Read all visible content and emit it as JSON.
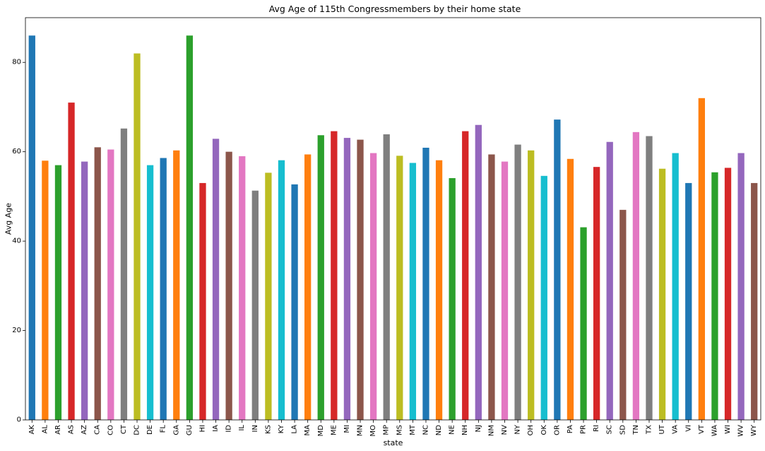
{
  "chart_data": {
    "type": "bar",
    "title": "Avg Age of 115th Congressmembers by their home state",
    "xlabel": "state",
    "ylabel": "Avg Age",
    "ylim": [
      0,
      90
    ],
    "yticks": [
      0,
      20,
      40,
      60,
      80
    ],
    "grid": false,
    "legend": "none",
    "categories": [
      "AK",
      "AL",
      "AR",
      "AS",
      "AZ",
      "CA",
      "CO",
      "CT",
      "DC",
      "DE",
      "FL",
      "GA",
      "GU",
      "HI",
      "IA",
      "ID",
      "IL",
      "IN",
      "KS",
      "KY",
      "LA",
      "MA",
      "MD",
      "ME",
      "MI",
      "MN",
      "MO",
      "MP",
      "MS",
      "MT",
      "NC",
      "ND",
      "NE",
      "NH",
      "NJ",
      "NM",
      "NV",
      "NY",
      "OH",
      "OK",
      "OR",
      "PA",
      "PR",
      "RI",
      "SC",
      "SD",
      "TN",
      "TX",
      "UT",
      "VA",
      "VI",
      "VT",
      "WA",
      "WI",
      "WV",
      "WY"
    ],
    "values": [
      86,
      58,
      57,
      71,
      57.8,
      61,
      60.5,
      65.2,
      82,
      57,
      58.6,
      60.3,
      86,
      53,
      62.9,
      60,
      59,
      51.3,
      55.3,
      58.1,
      52.7,
      59.4,
      63.7,
      64.6,
      63.1,
      62.7,
      59.7,
      63.9,
      59.1,
      57.5,
      60.9,
      58.1,
      54.1,
      64.6,
      66,
      59.4,
      57.8,
      61.6,
      60.3,
      54.6,
      67.2,
      58.4,
      43.1,
      56.6,
      62.2,
      47,
      64.4,
      63.5,
      56.2,
      59.7,
      53,
      72,
      55.4,
      56.4,
      59.7,
      53
    ],
    "palette": [
      "#1f77b4",
      "#ff7f0e",
      "#2ca02c",
      "#d62728",
      "#9467bd",
      "#8c564b",
      "#e377c2",
      "#7f7f7f",
      "#bcbd22",
      "#17becf"
    ]
  }
}
